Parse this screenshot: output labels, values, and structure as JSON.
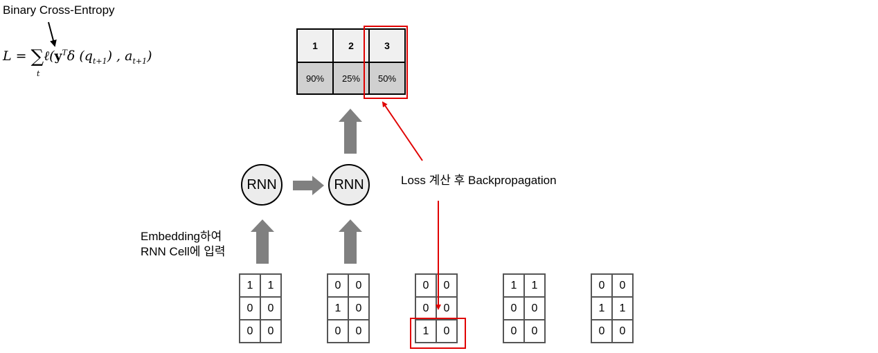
{
  "loss_label": "Binary Cross-Entropy",
  "formula": {
    "lhs": "L = ",
    "sum": "∑",
    "sum_index": "t",
    "body_1": "ℓ(",
    "body_y": "y",
    "body_T": "T",
    "body_2": "δ (q",
    "sub_1": "t+1",
    "body_3": ") , a",
    "sub_2": "t+1",
    "body_4": ")"
  },
  "output_table": {
    "headers": [
      "1",
      "2",
      "3"
    ],
    "percents": [
      "90%",
      "25%",
      "50%"
    ],
    "highlight_index": 2
  },
  "rnn_nodes": [
    "RNN",
    "RNN"
  ],
  "annotations": {
    "embedding_line1": "Embedding하여",
    "embedding_line2": "RNN Cell에 입력",
    "backprop": "Loss 계산 후 Backpropagation"
  },
  "inputs": [
    [
      [
        "1",
        "1"
      ],
      [
        "0",
        "0"
      ],
      [
        "0",
        "0"
      ]
    ],
    [
      [
        "0",
        "0"
      ],
      [
        "1",
        "0"
      ],
      [
        "0",
        "0"
      ]
    ],
    [
      [
        "0",
        "0"
      ],
      [
        "0",
        "0"
      ],
      [
        "1",
        "0"
      ]
    ],
    [
      [
        "1",
        "1"
      ],
      [
        "0",
        "0"
      ],
      [
        "0",
        "0"
      ]
    ],
    [
      [
        "0",
        "0"
      ],
      [
        "1",
        "1"
      ],
      [
        "0",
        "0"
      ]
    ]
  ],
  "colors": {
    "highlight": "#e00000",
    "arrow": "#808080"
  }
}
